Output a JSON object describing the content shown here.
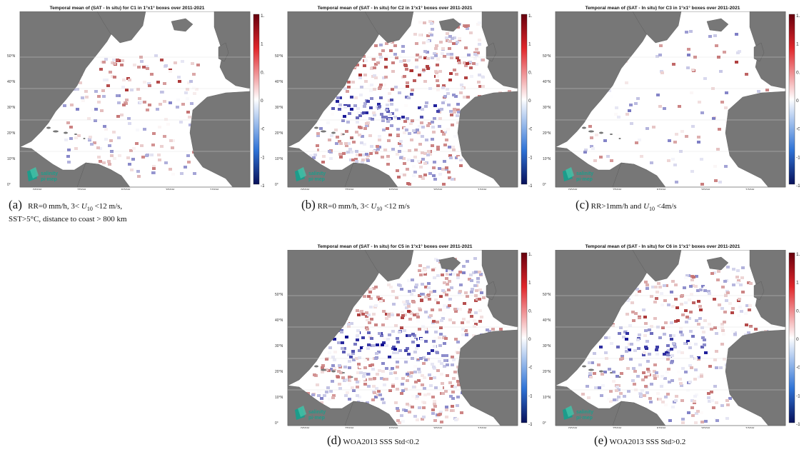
{
  "colorbar": {
    "ticks": [
      "1.5",
      "1",
      "0.5",
      "0",
      "-0.5",
      "-1",
      "-1.5"
    ],
    "max": 1.5,
    "min": -1.5
  },
  "axes": {
    "lat_ticks": [
      "50°N",
      "40°N",
      "30°N",
      "20°N",
      "10°N",
      "0°"
    ],
    "lon_ticks": [
      "90°W",
      "70°W",
      "50°W",
      "30°W",
      "10°W"
    ]
  },
  "logo": {
    "line1": "salinity",
    "line2": "pi·mep"
  },
  "panels": [
    {
      "id": "a",
      "title": "Temporal mean of (SAT - In situ) for C1 in 1°x1° boxes over 2011-2021",
      "label": "(a)",
      "cap_a": "RR=0 mm/h, 3< ",
      "cap_u": "U",
      "cap_sub": "10",
      "cap_b": " <12 m/s,",
      "cap_line2": "SST>5°C, distance to coast > 800 km"
    },
    {
      "id": "b",
      "title": "Temporal mean of (SAT - In situ) for C2 in 1°x1° boxes over 2011-2021",
      "label": "(b)",
      "cap_a": "RR=0 mm/h, 3< ",
      "cap_u": "U",
      "cap_sub": "10",
      "cap_b": " <12 m/s",
      "cap_line2": ""
    },
    {
      "id": "c",
      "title": "Temporal mean of (SAT - In situ) for C3 in 1°x1° boxes over 2011-2021",
      "label": "(c)",
      "cap_a": "RR>1mm/h and ",
      "cap_u": "U",
      "cap_sub": "10",
      "cap_b": " <4m/s",
      "cap_line2": ""
    },
    {
      "id": "d",
      "title": "Temporal mean of (SAT - In situ) for C5 in 1°x1° boxes over 2011-2021",
      "label": "(d)",
      "cap_a": "WOA2013 SSS Std<0.2",
      "cap_u": "",
      "cap_sub": "",
      "cap_b": "",
      "cap_line2": ""
    },
    {
      "id": "e",
      "title": "Temporal mean of (SAT - In situ) for C6 in 1°x1° boxes over 2011-2021",
      "label": "(e)",
      "cap_a": "WOA2013 SSS Std>0.2",
      "cap_u": "",
      "cap_sub": "",
      "cap_b": "",
      "cap_line2": ""
    }
  ]
}
